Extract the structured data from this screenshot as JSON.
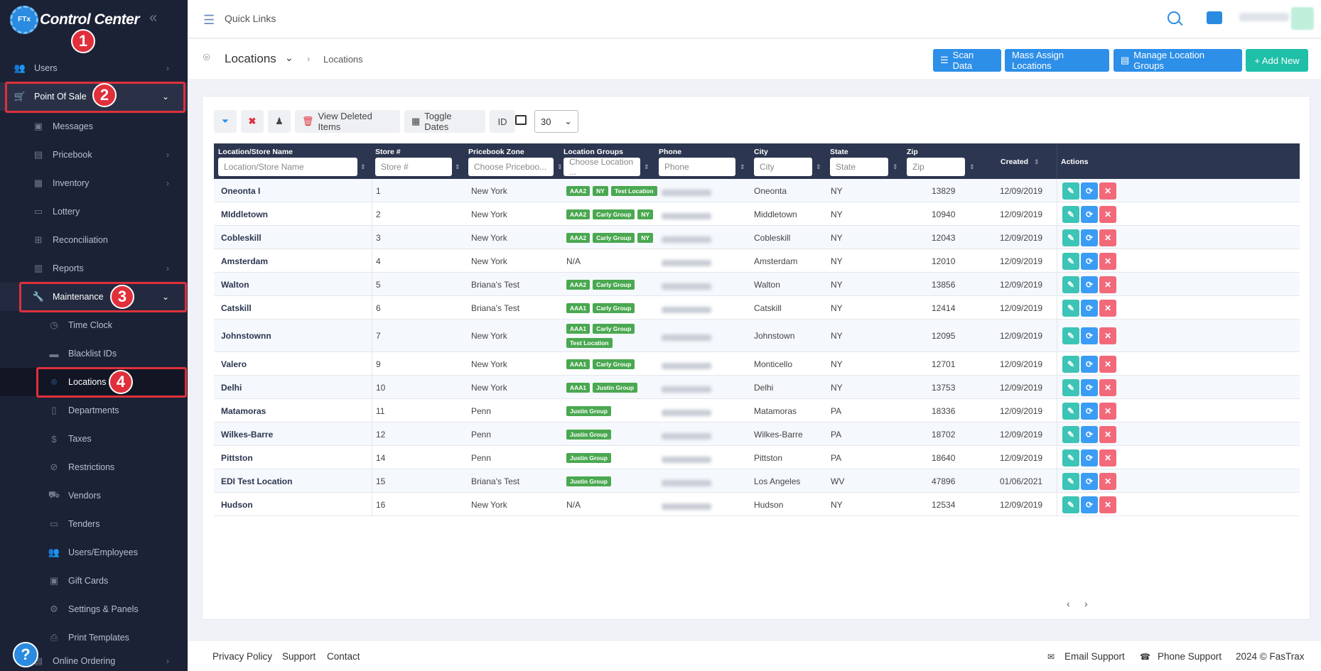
{
  "app": {
    "title": "Control Center",
    "logo_text": "FTx"
  },
  "topbar": {
    "quick_links": "Quick Links"
  },
  "sidebar": {
    "users": "Users",
    "point_of_sale": "Point Of Sale",
    "messages": "Messages",
    "pricebook": "Pricebook",
    "inventory": "Inventory",
    "lottery": "Lottery",
    "reconciliation": "Reconciliation",
    "reports": "Reports",
    "maintenance": "Maintenance",
    "time_clock": "Time Clock",
    "blacklist_ids": "Blacklist IDs",
    "locations": "Locations",
    "departments": "Departments",
    "taxes": "Taxes",
    "restrictions": "Restrictions",
    "vendors": "Vendors",
    "tenders": "Tenders",
    "users_employees": "Users/Employees",
    "gift_cards": "Gift Cards",
    "settings_panels": "Settings & Panels",
    "print_templates": "Print Templates",
    "online_ordering": "Online Ordering"
  },
  "steps": [
    "1",
    "2",
    "3",
    "4"
  ],
  "header": {
    "title": "Locations",
    "crumb": "Locations",
    "scan_data": "Scan Data",
    "mass_assign": "Mass Assign Locations",
    "manage_groups": "Manage Location Groups",
    "add_new": "+ Add New"
  },
  "toolbar": {
    "view_deleted": "View Deleted Items",
    "toggle_dates": "Toggle Dates",
    "id": "ID",
    "page_size": "30"
  },
  "table": {
    "headers": {
      "name": "Location/Store Name",
      "store": "Store #",
      "zone": "Pricebook Zone",
      "groups": "Location Groups",
      "phone": "Phone",
      "city": "City",
      "state": "State",
      "zip": "Zip",
      "created": "Created",
      "actions": "Actions"
    },
    "placeholders": {
      "name": "Location/Store Name",
      "store": "Store #",
      "zone": "Choose Priceboo...",
      "groups": "Choose Location ...",
      "phone": "Phone",
      "city": "City",
      "state": "State",
      "zip": "Zip"
    },
    "rows": [
      {
        "name": "Oneonta I",
        "store": "1",
        "zone": "New York",
        "tags": [
          "AAA2",
          "NY",
          "Test Location"
        ],
        "city": "Oneonta",
        "state": "NY",
        "zip": "13829",
        "created": "12/09/2019"
      },
      {
        "name": "MIddletown",
        "store": "2",
        "zone": "New York",
        "tags": [
          "AAA2",
          "Carly Group",
          "NY"
        ],
        "city": "Middletown",
        "state": "NY",
        "zip": "10940",
        "created": "12/09/2019"
      },
      {
        "name": "Cobleskill",
        "store": "3",
        "zone": "New York",
        "tags": [
          "AAA2",
          "Carly Group",
          "NY"
        ],
        "city": "Cobleskill",
        "state": "NY",
        "zip": "12043",
        "created": "12/09/2019"
      },
      {
        "name": "Amsterdam",
        "store": "4",
        "zone": "New York",
        "groups_text": "N/A",
        "city": "Amsterdam",
        "state": "NY",
        "zip": "12010",
        "created": "12/09/2019"
      },
      {
        "name": "Walton",
        "store": "5",
        "zone": "Briana's Test",
        "tags": [
          "AAA2",
          "Carly Group"
        ],
        "city": "Walton",
        "state": "NY",
        "zip": "13856",
        "created": "12/09/2019"
      },
      {
        "name": "Catskill",
        "store": "6",
        "zone": "Briana's Test",
        "tags": [
          "AAA1",
          "Carly Group"
        ],
        "city": "Catskill",
        "state": "NY",
        "zip": "12414",
        "created": "12/09/2019"
      },
      {
        "name": "Johnstownn",
        "store": "7",
        "zone": "New York",
        "tags": [
          "AAA1",
          "Carly Group"
        ],
        "tags2": [
          "Test Location"
        ],
        "city": "Johnstown",
        "state": "NY",
        "zip": "12095",
        "created": "12/09/2019"
      },
      {
        "name": "Valero",
        "store": "9",
        "zone": "New York",
        "tags": [
          "AAA1",
          "Carly Group"
        ],
        "city": "Monticello",
        "state": "NY",
        "zip": "12701",
        "created": "12/09/2019"
      },
      {
        "name": "Delhi",
        "store": "10",
        "zone": "New York",
        "tags": [
          "AAA1",
          "Justin Group"
        ],
        "city": "Delhi",
        "state": "NY",
        "zip": "13753",
        "created": "12/09/2019"
      },
      {
        "name": "Matamoras",
        "store": "11",
        "zone": "Penn",
        "tags": [
          "Justin Group"
        ],
        "city": "Matamoras",
        "state": "PA",
        "zip": "18336",
        "created": "12/09/2019"
      },
      {
        "name": "Wilkes-Barre",
        "store": "12",
        "zone": "Penn",
        "tags": [
          "Justin Group"
        ],
        "city": "Wilkes-Barre",
        "state": "PA",
        "zip": "18702",
        "created": "12/09/2019"
      },
      {
        "name": "Pittston",
        "store": "14",
        "zone": "Penn",
        "tags": [
          "Justin Group"
        ],
        "city": "Pittston",
        "state": "PA",
        "zip": "18640",
        "created": "12/09/2019"
      },
      {
        "name": "EDI Test Location",
        "store": "15",
        "zone": "Briana's Test",
        "tags": [
          "Justin Group"
        ],
        "city": "Los Angeles",
        "state": "WV",
        "zip": "47896",
        "created": "01/06/2021"
      },
      {
        "name": "Hudson",
        "store": "16",
        "zone": "New York",
        "groups_text": "N/A",
        "city": "Hudson",
        "state": "NY",
        "zip": "12534",
        "created": "12/09/2019"
      }
    ]
  },
  "pager": {
    "prev": "‹",
    "next": "›"
  },
  "footer": {
    "privacy": "Privacy Policy",
    "support": "Support",
    "contact": "Contact",
    "email_support": "Email Support",
    "phone_support": "Phone Support",
    "copyright": "2024 © FasTrax"
  },
  "colors": {
    "sidebar_bg": "#1c2236",
    "accent_blue": "#2d8fe8",
    "accent_teal": "#1fbfa8",
    "highlight_red": "#e0303b",
    "tag_green": "#4aa850"
  }
}
